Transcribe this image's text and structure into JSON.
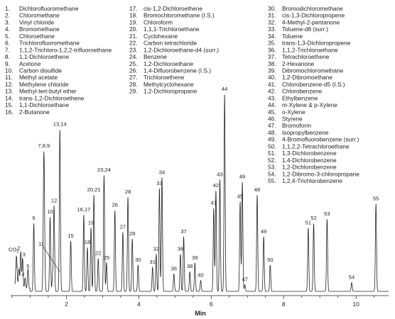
{
  "chart_data": {
    "type": "line",
    "title": "",
    "xlabel": "Min",
    "ylabel": "",
    "xlim": [
      0.5,
      10.9
    ],
    "ylim": [
      0,
      100
    ],
    "x_ticks": [
      {
        "value": 2,
        "label": "2"
      },
      {
        "value": 4,
        "label": "4"
      },
      {
        "value": 6,
        "label": "6"
      },
      {
        "value": 8,
        "label": "8"
      },
      {
        "value": 10,
        "label": "10"
      }
    ],
    "grid": false,
    "legend": [
      {
        "num": "1.",
        "name": "Dichlorofluoromethane"
      },
      {
        "num": "2.",
        "name": "Chloromethane"
      },
      {
        "num": "3.",
        "name": "Vinyl chloride"
      },
      {
        "num": "4.",
        "name": "Bromomethane"
      },
      {
        "num": "5.",
        "name": "Chloroethane"
      },
      {
        "num": "6.",
        "name": "Trichlorofluoromethane"
      },
      {
        "num": "7.",
        "name": "1,1,2-Trichloro-1,2,2-trifluoroethane"
      },
      {
        "num": "8.",
        "name": "1,1-Dichloroethene"
      },
      {
        "num": "9.",
        "name": "Acetone"
      },
      {
        "num": "10.",
        "name": "Carbon disulfide"
      },
      {
        "num": "11.",
        "name": "Methyl acetate"
      },
      {
        "num": "12.",
        "name": "Methylene chloride"
      },
      {
        "num": "13.",
        "name": "Methyl-tert-butyl ether"
      },
      {
        "num": "14.",
        "name": "trans-1,2-Dichloroethene"
      },
      {
        "num": "15.",
        "name": "1,1-Dichloroethane"
      },
      {
        "num": "16.",
        "name": "2-Butanone"
      },
      {
        "num": "17.",
        "name": "cis-1,2-Dichloroethene"
      },
      {
        "num": "18.",
        "name": "Bromochloromethane (I.S.)"
      },
      {
        "num": "19.",
        "name": "Chloroform"
      },
      {
        "num": "20.",
        "name": "1,1,1-Trichloroethane"
      },
      {
        "num": "21.",
        "name": "Cyclohexane"
      },
      {
        "num": "22.",
        "name": "Carbon tetrachloride"
      },
      {
        "num": "23.",
        "name": "1,2-Dichloroethane-d4 (surr.)"
      },
      {
        "num": "24.",
        "name": "Benzene"
      },
      {
        "num": "25.",
        "name": "1,2-Dichloroethane"
      },
      {
        "num": "26.",
        "name": "1,4-Difluorobenzene (I.S.)"
      },
      {
        "num": "27.",
        "name": "Trichloroethene"
      },
      {
        "num": "28.",
        "name": "Methylcyclohexane"
      },
      {
        "num": "29.",
        "name": "1,2-Dichloropropane"
      },
      {
        "num": "30.",
        "name": "Bromodichloromethane"
      },
      {
        "num": "31.",
        "name": "cis-1,3-Dichloropropene"
      },
      {
        "num": "32.",
        "name": "4-Methyl-2-pentanone"
      },
      {
        "num": "33.",
        "name": "Toluene-d8 (surr.)"
      },
      {
        "num": "34.",
        "name": "Toluene"
      },
      {
        "num": "35.",
        "name": "trans-1,3-Dichloropropene"
      },
      {
        "num": "36.",
        "name": "1,1,2-Trichloroethane"
      },
      {
        "num": "37.",
        "name": "Tetrachloroethene"
      },
      {
        "num": "38.",
        "name": "2-Hexanone"
      },
      {
        "num": "39.",
        "name": "Dibromochloromethane"
      },
      {
        "num": "40.",
        "name": "1,2-Dibromoethane"
      },
      {
        "num": "41.",
        "name": "Chlorobenzene-d5 (I.S.)"
      },
      {
        "num": "42.",
        "name": "Chlorobenzene"
      },
      {
        "num": "43.",
        "name": "Ethylbenzene"
      },
      {
        "num": "44.",
        "name": "m-Xylene & p-Xylene"
      },
      {
        "num": "45.",
        "name": "o-Xylene"
      },
      {
        "num": "46.",
        "name": "Styrene"
      },
      {
        "num": "47.",
        "name": "Bromoform"
      },
      {
        "num": "48.",
        "name": "Isopropylbenzene"
      },
      {
        "num": "49.",
        "name": "4-Bromofluorobenzene (surr.)"
      },
      {
        "num": "50.",
        "name": "1,1,2,2-Tetrachloroethane"
      },
      {
        "num": "51.",
        "name": "1,3-Dichlorobenzene"
      },
      {
        "num": "52.",
        "name": "1,4-Dichlorobenzene"
      },
      {
        "num": "53.",
        "name": "1,2-Dichlorobenzene"
      },
      {
        "num": "54.",
        "name": "1,2-Dibromo-3-chloropropane"
      },
      {
        "num": "55.",
        "name": "1,2,4-Trichlorobenzene"
      }
    ],
    "peaks": [
      {
        "label": "CO2",
        "rt": 0.62,
        "height": 15,
        "width": 0.02
      },
      {
        "label": "1",
        "rt": 0.69,
        "height": 9,
        "width": 0.015
      },
      {
        "label": "2",
        "rt": 0.74,
        "height": 17,
        "width": 0.015
      },
      {
        "label": "3",
        "rt": 0.79,
        "height": 14,
        "width": 0.015
      },
      {
        "label": "4",
        "rt": 0.86,
        "height": 5,
        "width": 0.015
      },
      {
        "label": "5",
        "rt": 0.94,
        "height": 9,
        "width": 0.015
      },
      {
        "label": "6",
        "rt": 1.1,
        "height": 31,
        "width": 0.015
      },
      {
        "label": "7,8,9",
        "rt": 1.38,
        "height": 64,
        "width": 0.018
      },
      {
        "label": "10",
        "rt": 1.55,
        "height": 34,
        "width": 0.015
      },
      {
        "label": "11",
        "rt": 1.62,
        "height": 8,
        "width": 0.015
      },
      {
        "label": "12",
        "rt": 1.66,
        "height": 39,
        "width": 0.015
      },
      {
        "label": "13,14",
        "rt": 1.82,
        "height": 74,
        "width": 0.015
      },
      {
        "label": "15",
        "rt": 2.12,
        "height": 23,
        "width": 0.015
      },
      {
        "label": "16,17",
        "rt": 2.48,
        "height": 35,
        "width": 0.015
      },
      {
        "label": "18",
        "rt": 2.58,
        "height": 20,
        "width": 0.015
      },
      {
        "label": "19",
        "rt": 2.68,
        "height": 29,
        "width": 0.015
      },
      {
        "label": "20,21",
        "rt": 2.76,
        "height": 44,
        "width": 0.015
      },
      {
        "label": "22",
        "rt": 2.88,
        "height": 15,
        "width": 0.015
      },
      {
        "label": "23,24",
        "rt": 3.04,
        "height": 53,
        "width": 0.015
      },
      {
        "label": "25",
        "rt": 3.11,
        "height": 13,
        "width": 0.015
      },
      {
        "label": "26",
        "rt": 3.34,
        "height": 37,
        "width": 0.015
      },
      {
        "label": "27",
        "rt": 3.56,
        "height": 27,
        "width": 0.015
      },
      {
        "label": "28",
        "rt": 3.7,
        "height": 43,
        "width": 0.015
      },
      {
        "label": "29",
        "rt": 3.82,
        "height": 24,
        "width": 0.015
      },
      {
        "label": "30",
        "rt": 3.98,
        "height": 12,
        "width": 0.015
      },
      {
        "label": "31",
        "rt": 4.38,
        "height": 11,
        "width": 0.015
      },
      {
        "label": "32",
        "rt": 4.48,
        "height": 17,
        "width": 0.015
      },
      {
        "label": "33",
        "rt": 4.57,
        "height": 47,
        "width": 0.015
      },
      {
        "label": "34",
        "rt": 4.64,
        "height": 52,
        "width": 0.015
      },
      {
        "label": "35",
        "rt": 4.97,
        "height": 8,
        "width": 0.015
      },
      {
        "label": "36",
        "rt": 5.15,
        "height": 17,
        "width": 0.015
      },
      {
        "label": "37",
        "rt": 5.24,
        "height": 25,
        "width": 0.015
      },
      {
        "label": "38",
        "rt": 5.41,
        "height": 9,
        "width": 0.015
      },
      {
        "label": "39",
        "rt": 5.55,
        "height": 13,
        "width": 0.015
      },
      {
        "label": "40",
        "rt": 5.71,
        "height": 5,
        "width": 0.015
      },
      {
        "label": "41",
        "rt": 6.07,
        "height": 38,
        "width": 0.015
      },
      {
        "label": "42",
        "rt": 6.13,
        "height": 46,
        "width": 0.015
      },
      {
        "label": "43",
        "rt": 6.24,
        "height": 51,
        "width": 0.015
      },
      {
        "label": "44",
        "rt": 6.37,
        "height": 90,
        "width": 0.015
      },
      {
        "label": "45",
        "rt": 6.8,
        "height": 41,
        "width": 0.015
      },
      {
        "label": "46",
        "rt": 6.86,
        "height": 50,
        "width": 0.015
      },
      {
        "label": "47",
        "rt": 6.93,
        "height": 3,
        "width": 0.015
      },
      {
        "label": "48",
        "rt": 7.27,
        "height": 44,
        "width": 0.015
      },
      {
        "label": "49",
        "rt": 7.45,
        "height": 25,
        "width": 0.015
      },
      {
        "label": "50",
        "rt": 7.63,
        "height": 12,
        "width": 0.015
      },
      {
        "label": "51",
        "rt": 8.68,
        "height": 29,
        "width": 0.015
      },
      {
        "label": "52",
        "rt": 8.83,
        "height": 31,
        "width": 0.015
      },
      {
        "label": "53",
        "rt": 9.2,
        "height": 33,
        "width": 0.015
      },
      {
        "label": "54",
        "rt": 9.88,
        "height": 4,
        "width": 0.015
      },
      {
        "label": "55",
        "rt": 10.55,
        "height": 40,
        "width": 0.015
      }
    ]
  }
}
